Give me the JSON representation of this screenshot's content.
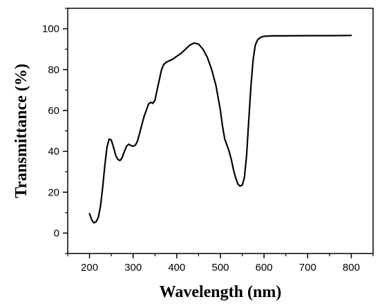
{
  "chart_data": {
    "type": "line",
    "title": "",
    "xlabel": "Wavelength (nm)",
    "ylabel": "Transmittance (%)",
    "xlim": [
      150,
      850
    ],
    "ylim": [
      -10,
      110
    ],
    "x_ticks": [
      200,
      300,
      400,
      500,
      600,
      700,
      800
    ],
    "y_ticks": [
      0,
      20,
      40,
      60,
      80,
      100
    ],
    "grid": false,
    "legend": "none",
    "line_color": "#000000",
    "series": [
      {
        "x": [
          200,
          205,
          210,
          215,
          220,
          225,
          230,
          235,
          240,
          245,
          250,
          255,
          260,
          265,
          270,
          275,
          280,
          285,
          290,
          295,
          300,
          305,
          310,
          315,
          320,
          325,
          330,
          335,
          340,
          345,
          350,
          355,
          360,
          365,
          370,
          375,
          380,
          385,
          390,
          400,
          410,
          420,
          430,
          440,
          450,
          460,
          470,
          480,
          490,
          500,
          505,
          510,
          515,
          520,
          525,
          530,
          535,
          540,
          545,
          550,
          555,
          560,
          565,
          570,
          575,
          580,
          585,
          590,
          595,
          600,
          610,
          620,
          650,
          700,
          750,
          800
        ],
        "y": [
          9.5,
          6.5,
          5,
          5.5,
          7.5,
          13,
          22,
          33,
          42,
          46,
          45.5,
          42,
          38,
          36,
          35.5,
          37,
          40,
          42.5,
          43.5,
          42.8,
          42.5,
          43,
          45,
          49,
          53,
          57,
          60,
          63,
          64,
          63.5,
          65,
          70,
          75,
          80,
          82.5,
          83.5,
          84,
          84.5,
          85,
          86.5,
          88,
          90,
          92,
          93,
          92.5,
          90,
          86,
          80,
          72,
          60,
          52,
          46,
          43,
          40,
          36,
          31,
          27,
          24,
          23,
          23.5,
          27,
          38,
          55,
          72,
          85,
          92,
          94.5,
          95.5,
          96,
          96.3,
          96.4,
          96.5,
          96.5,
          96.6,
          96.6,
          96.7
        ]
      }
    ]
  }
}
